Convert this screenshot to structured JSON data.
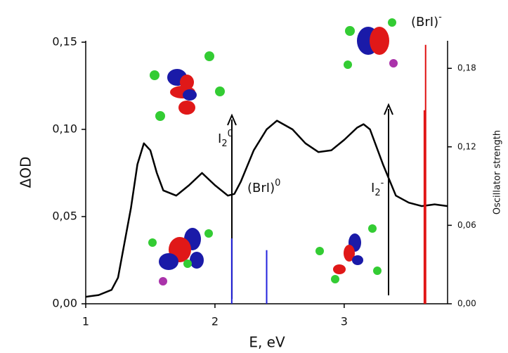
{
  "chart_data": {
    "type": "line",
    "x_label": "E, eV",
    "y_label": "ΔOD",
    "y2_label": "Oscillator strength",
    "x": [
      1.0,
      1.1,
      1.2,
      1.25,
      1.3,
      1.35,
      1.4,
      1.45,
      1.5,
      1.55,
      1.6,
      1.7,
      1.8,
      1.9,
      2.0,
      2.1,
      2.15,
      2.2,
      2.3,
      2.4,
      2.48,
      2.6,
      2.7,
      2.8,
      2.9,
      3.0,
      3.1,
      3.15,
      3.2,
      3.3,
      3.4,
      3.5,
      3.6,
      3.7,
      3.8
    ],
    "series": [
      {
        "color": "#000000",
        "values": [
          0.004,
          0.005,
          0.008,
          0.015,
          0.035,
          0.055,
          0.08,
          0.092,
          0.088,
          0.075,
          0.065,
          0.062,
          0.068,
          0.075,
          0.068,
          0.062,
          0.063,
          0.07,
          0.088,
          0.1,
          0.105,
          0.1,
          0.092,
          0.087,
          0.088,
          0.094,
          0.101,
          0.103,
          0.1,
          0.08,
          0.062,
          0.058,
          0.056,
          0.057,
          0.056
        ]
      },
      {
        "style": "stick",
        "axis": "y2",
        "color": "#2222dd",
        "x": [
          2.13,
          2.4
        ],
        "values": [
          0.05,
          0.041
        ]
      },
      {
        "style": "stick",
        "axis": "y2",
        "color": "#e01010",
        "x": [
          3.62,
          3.63
        ],
        "values": [
          0.148,
          0.198
        ]
      }
    ],
    "annotations": [
      {
        "base": "I",
        "sub": "2",
        "sup": "0"
      },
      {
        "base": "(BrI)",
        "sup": "0"
      },
      {
        "base": "I",
        "sub": "2",
        "sup": "-"
      },
      {
        "base": "(BrI)",
        "sup": "-"
      }
    ],
    "xlim": [
      1,
      3.8
    ],
    "xticks": [
      1,
      2,
      3
    ],
    "ylim": [
      0,
      0.15
    ],
    "yticks": [
      {
        "value": 0,
        "label": "0,00"
      },
      {
        "value": 0.05,
        "label": "0,05"
      },
      {
        "value": 0.1,
        "label": "0,10"
      },
      {
        "value": 0.15,
        "label": "0,15"
      }
    ],
    "y2lim": [
      0,
      0.2
    ],
    "y2ticks": [
      {
        "value": 0,
        "label": "0,00"
      },
      {
        "value": 0.06,
        "label": "0,06"
      },
      {
        "value": 0.12,
        "label": "0,12"
      },
      {
        "value": 0.18,
        "label": "0,18"
      }
    ]
  }
}
